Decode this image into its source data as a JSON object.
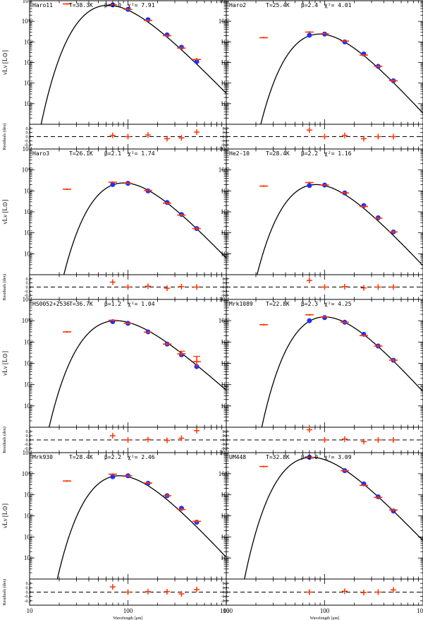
{
  "chart_data": {
    "type": "scatter",
    "description_free": true,
    "xlabel": "Wavelength [μm]",
    "ylabel": "νLν [L⊙]",
    "residual_ylabel": "Residuals (dex)",
    "xlim": [
      10,
      1000
    ],
    "ylim": [
      100000,
      100000000000
    ],
    "residual_ylim": [
      -0.3,
      0.3
    ],
    "x_tick_labels": [
      "10",
      "100",
      "1000"
    ],
    "y_tick_labels": [
      "10⁶",
      "10⁷",
      "10⁸",
      "10⁹",
      "10¹⁰",
      "10¹¹"
    ],
    "residual_tick_labels": [
      "0.2",
      "0.1",
      "0.0",
      "-0.1",
      "-0.2"
    ],
    "fit_line_style": "solid black",
    "residual_zero_line": "dashed black",
    "legend": "none",
    "panels": [
      {
        "name": "Haro11",
        "T": "T=38.3K",
        "beta": "β=2.0",
        "chi2": "χ²= 7.91",
        "T_K": 38.3,
        "beta_val": 2.0,
        "norm": 60000000000.0,
        "observed": [
          {
            "x": 24,
            "y": 70000000000.0,
            "err": 0.04
          },
          {
            "x": 70,
            "y": 65000000000.0,
            "err": 0.03
          },
          {
            "x": 100,
            "y": 38000000000.0,
            "err": 0.03
          },
          {
            "x": 160,
            "y": 11000000000.0,
            "err": 0.04
          },
          {
            "x": 250,
            "y": 2000000000.0,
            "err": 0.05
          },
          {
            "x": 350,
            "y": 500000000.0,
            "err": 0.06
          },
          {
            "x": 500,
            "y": 140000000.0,
            "err": 0.08
          }
        ],
        "model": [
          {
            "x": 70,
            "y": 63000000000.0
          },
          {
            "x": 100,
            "y": 38000000000.0
          },
          {
            "x": 160,
            "y": 12000000000.0
          },
          {
            "x": 250,
            "y": 2200000000.0
          },
          {
            "x": 350,
            "y": 550000000.0
          },
          {
            "x": 500,
            "y": 110000000.0
          }
        ],
        "residuals": [
          {
            "x": 70,
            "y": 0.03
          },
          {
            "x": 100,
            "y": 0.0
          },
          {
            "x": 160,
            "y": 0.04
          },
          {
            "x": 250,
            "y": -0.05
          },
          {
            "x": 350,
            "y": -0.03
          },
          {
            "x": 500,
            "y": 0.11
          }
        ]
      },
      {
        "name": "Haro2",
        "T": "T=25.4K",
        "beta": "β=2.4",
        "chi2": "χ²= 4.01",
        "T_K": 25.4,
        "beta_val": 2.4,
        "norm": 2400000000.0,
        "observed": [
          {
            "x": 24,
            "y": 1600000000.0,
            "err": 0.04
          },
          {
            "x": 70,
            "y": 3000000000.0,
            "err": 0.04
          },
          {
            "x": 100,
            "y": 2500000000.0,
            "err": 0.03
          },
          {
            "x": 160,
            "y": 1100000000.0,
            "err": 0.04
          },
          {
            "x": 250,
            "y": 230000000.0,
            "err": 0.05
          },
          {
            "x": 350,
            "y": 65000000.0,
            "err": 0.06
          },
          {
            "x": 500,
            "y": 13000000.0,
            "err": 0.07
          }
        ],
        "model": [
          {
            "x": 70,
            "y": 2100000000.0
          },
          {
            "x": 100,
            "y": 2400000000.0
          },
          {
            "x": 160,
            "y": 1000000000.0
          },
          {
            "x": 250,
            "y": 260000000.0
          },
          {
            "x": 350,
            "y": 65000000.0
          },
          {
            "x": 500,
            "y": 13000000.0
          }
        ],
        "residuals": [
          {
            "x": 70,
            "y": 0.16
          },
          {
            "x": 100,
            "y": 0.0
          },
          {
            "x": 160,
            "y": 0.03
          },
          {
            "x": 250,
            "y": -0.05
          },
          {
            "x": 350,
            "y": 0.0
          },
          {
            "x": 500,
            "y": 0.0
          }
        ]
      },
      {
        "name": "Haro3",
        "T": "T=26.1K",
        "beta": "β=2.1",
        "chi2": "χ²= 1.74",
        "T_K": 26.1,
        "beta_val": 2.1,
        "norm": 2400000000.0,
        "observed": [
          {
            "x": 24,
            "y": 1200000000.0,
            "err": 0.04
          },
          {
            "x": 70,
            "y": 2600000000.0,
            "err": 0.04
          },
          {
            "x": 100,
            "y": 2300000000.0,
            "err": 0.03
          },
          {
            "x": 160,
            "y": 1050000000.0,
            "err": 0.04
          },
          {
            "x": 250,
            "y": 260000000.0,
            "err": 0.05
          },
          {
            "x": 350,
            "y": 70000000.0,
            "err": 0.06
          },
          {
            "x": 500,
            "y": 16000000.0,
            "err": 0.07
          }
        ],
        "model": [
          {
            "x": 70,
            "y": 2000000000.0
          },
          {
            "x": 100,
            "y": 2300000000.0
          },
          {
            "x": 160,
            "y": 1000000000.0
          },
          {
            "x": 250,
            "y": 280000000.0
          },
          {
            "x": 350,
            "y": 75000000.0
          },
          {
            "x": 500,
            "y": 16000000.0
          }
        ],
        "residuals": [
          {
            "x": 70,
            "y": 0.12
          },
          {
            "x": 100,
            "y": 0.0
          },
          {
            "x": 160,
            "y": 0.02
          },
          {
            "x": 250,
            "y": -0.03
          },
          {
            "x": 350,
            "y": 0.01
          },
          {
            "x": 500,
            "y": 0.0
          }
        ]
      },
      {
        "name": "He2-10",
        "T": "T=28.4K",
        "beta": "β=2.2",
        "chi2": "χ²= 1.16",
        "T_K": 28.4,
        "beta_val": 2.2,
        "norm": 2000000000.0,
        "observed": [
          {
            "x": 24,
            "y": 1700000000.0,
            "err": 0.04
          },
          {
            "x": 70,
            "y": 2500000000.0,
            "err": 0.04
          },
          {
            "x": 100,
            "y": 1900000000.0,
            "err": 0.03
          },
          {
            "x": 160,
            "y": 800000000.0,
            "err": 0.04
          },
          {
            "x": 250,
            "y": 180000000.0,
            "err": 0.05
          },
          {
            "x": 350,
            "y": 50000000.0,
            "err": 0.06
          },
          {
            "x": 500,
            "y": 11000000.0,
            "err": 0.07
          }
        ],
        "model": [
          {
            "x": 70,
            "y": 1800000000.0
          },
          {
            "x": 100,
            "y": 1900000000.0
          },
          {
            "x": 160,
            "y": 800000000.0
          },
          {
            "x": 250,
            "y": 200000000.0
          },
          {
            "x": 350,
            "y": 52000000.0
          },
          {
            "x": 500,
            "y": 11000000.0
          }
        ],
        "residuals": [
          {
            "x": 70,
            "y": 0.16
          },
          {
            "x": 100,
            "y": 0.0
          },
          {
            "x": 160,
            "y": 0.01
          },
          {
            "x": 250,
            "y": -0.02
          },
          {
            "x": 350,
            "y": 0.0
          },
          {
            "x": 500,
            "y": 0.0
          }
        ]
      },
      {
        "name": "HS0052+2536",
        "T": "T=36.7K",
        "beta": "β=1.2",
        "chi2": "χ²= 1.04",
        "T_K": 36.7,
        "beta_val": 1.2,
        "norm": 10000000000.0,
        "observed": [
          {
            "x": 24,
            "y": 3000000000.0,
            "err": 0.04
          },
          {
            "x": 70,
            "y": 10500000000.0,
            "err": 0.04
          },
          {
            "x": 100,
            "y": 7500000000.0,
            "err": 0.03
          },
          {
            "x": 160,
            "y": 2900000000.0,
            "err": 0.04
          },
          {
            "x": 250,
            "y": 800000000.0,
            "err": 0.06
          },
          {
            "x": 350,
            "y": 280000000.0,
            "err": 0.12
          },
          {
            "x": 500,
            "y": 120000000.0,
            "err": 0.25
          }
        ],
        "model": [
          {
            "x": 70,
            "y": 9000000000.0
          },
          {
            "x": 100,
            "y": 7500000000.0
          },
          {
            "x": 160,
            "y": 3000000000.0
          },
          {
            "x": 250,
            "y": 800000000.0
          },
          {
            "x": 350,
            "y": 250000000.0
          },
          {
            "x": 500,
            "y": 70000000.0
          }
        ],
        "residuals": [
          {
            "x": 70,
            "y": 0.1
          },
          {
            "x": 100,
            "y": 0.0
          },
          {
            "x": 160,
            "y": 0.01
          },
          {
            "x": 250,
            "y": -0.01
          },
          {
            "x": 350,
            "y": 0.04
          },
          {
            "x": 500,
            "y": 0.22
          }
        ]
      },
      {
        "name": "Mrk1089",
        "T": "T=22.8K",
        "beta": "β=2.3",
        "chi2": "χ²= 4.25",
        "T_K": 22.8,
        "beta_val": 2.3,
        "norm": 15000000000.0,
        "observed": [
          {
            "x": 24,
            "y": 6500000000.0,
            "err": 0.04
          },
          {
            "x": 70,
            "y": 19000000000.0,
            "err": 0.04
          },
          {
            "x": 100,
            "y": 15000000000.0,
            "err": 0.03
          },
          {
            "x": 160,
            "y": 8500000000.0,
            "err": 0.04
          },
          {
            "x": 250,
            "y": 2000000000.0,
            "err": 0.05
          },
          {
            "x": 350,
            "y": 650000000.0,
            "err": 0.06
          },
          {
            "x": 500,
            "y": 140000000.0,
            "err": 0.07
          }
        ],
        "model": [
          {
            "x": 70,
            "y": 10000000000.0
          },
          {
            "x": 100,
            "y": 14000000000.0
          },
          {
            "x": 160,
            "y": 8500000000.0
          },
          {
            "x": 250,
            "y": 2300000000.0
          },
          {
            "x": 350,
            "y": 650000000.0
          },
          {
            "x": 500,
            "y": 140000000.0
          }
        ],
        "residuals": [
          {
            "x": 70,
            "y": 0.24
          },
          {
            "x": 100,
            "y": 0.0
          },
          {
            "x": 160,
            "y": 0.02
          },
          {
            "x": 250,
            "y": -0.04
          },
          {
            "x": 350,
            "y": 0.0
          },
          {
            "x": 500,
            "y": 0.0
          }
        ]
      },
      {
        "name": "Mrk930",
        "T": "T=28.4K",
        "beta": "β=2.2",
        "chi2": "χ²= 2.46",
        "T_K": 28.4,
        "beta_val": 2.2,
        "norm": 8000000000.0,
        "observed": [
          {
            "x": 24,
            "y": 4500000000.0,
            "err": 0.04
          },
          {
            "x": 70,
            "y": 9500000000.0,
            "err": 0.04
          },
          {
            "x": 100,
            "y": 8000000000.0,
            "err": 0.03
          },
          {
            "x": 160,
            "y": 3600000000.0,
            "err": 0.04
          },
          {
            "x": 250,
            "y": 900000000.0,
            "err": 0.05
          },
          {
            "x": 350,
            "y": 200000000.0,
            "err": 0.07
          },
          {
            "x": 500,
            "y": 55000000.0,
            "err": 0.08
          }
        ],
        "model": [
          {
            "x": 70,
            "y": 7200000000.0
          },
          {
            "x": 100,
            "y": 8000000000.0
          },
          {
            "x": 160,
            "y": 3500000000.0
          },
          {
            "x": 250,
            "y": 900000000.0
          },
          {
            "x": 350,
            "y": 230000000.0
          },
          {
            "x": 500,
            "y": 50000000.0
          }
        ],
        "residuals": [
          {
            "x": 70,
            "y": 0.12
          },
          {
            "x": 100,
            "y": 0.0
          },
          {
            "x": 160,
            "y": 0.01
          },
          {
            "x": 250,
            "y": 0.01
          },
          {
            "x": 350,
            "y": -0.04
          },
          {
            "x": 500,
            "y": 0.06
          }
        ]
      },
      {
        "name": "UM448",
        "T": "T=32.8K",
        "beta": "β=2.0",
        "chi2": "χ²= 3.09",
        "T_K": 32.8,
        "beta_val": 2.0,
        "norm": 60000000000.0,
        "observed": [
          {
            "x": 24,
            "y": 22000000000.0,
            "err": 0.04
          },
          {
            "x": 70,
            "y": 60000000000.0,
            "err": 0.03
          },
          {
            "x": 160,
            "y": 14000000000.0,
            "err": 0.04
          },
          {
            "x": 250,
            "y": 2800000000.0,
            "err": 0.05
          },
          {
            "x": 350,
            "y": 750000000.0,
            "err": 0.06
          },
          {
            "x": 500,
            "y": 190000000.0,
            "err": 0.07
          }
        ],
        "model": [
          {
            "x": 70,
            "y": 60000000000.0
          },
          {
            "x": 160,
            "y": 14000000000.0
          },
          {
            "x": 250,
            "y": 3300000000.0
          },
          {
            "x": 350,
            "y": 800000000.0
          },
          {
            "x": 500,
            "y": 170000000.0
          }
        ],
        "residuals": [
          {
            "x": 70,
            "y": 0.0
          },
          {
            "x": 160,
            "y": 0.02
          },
          {
            "x": 250,
            "y": -0.01
          },
          {
            "x": 350,
            "y": 0.0
          },
          {
            "x": 500,
            "y": 0.05
          }
        ]
      }
    ]
  },
  "colors": {
    "observed": "#ff3300",
    "model": "#1f2fff",
    "axes": "#000000",
    "background": "#ffffff"
  }
}
